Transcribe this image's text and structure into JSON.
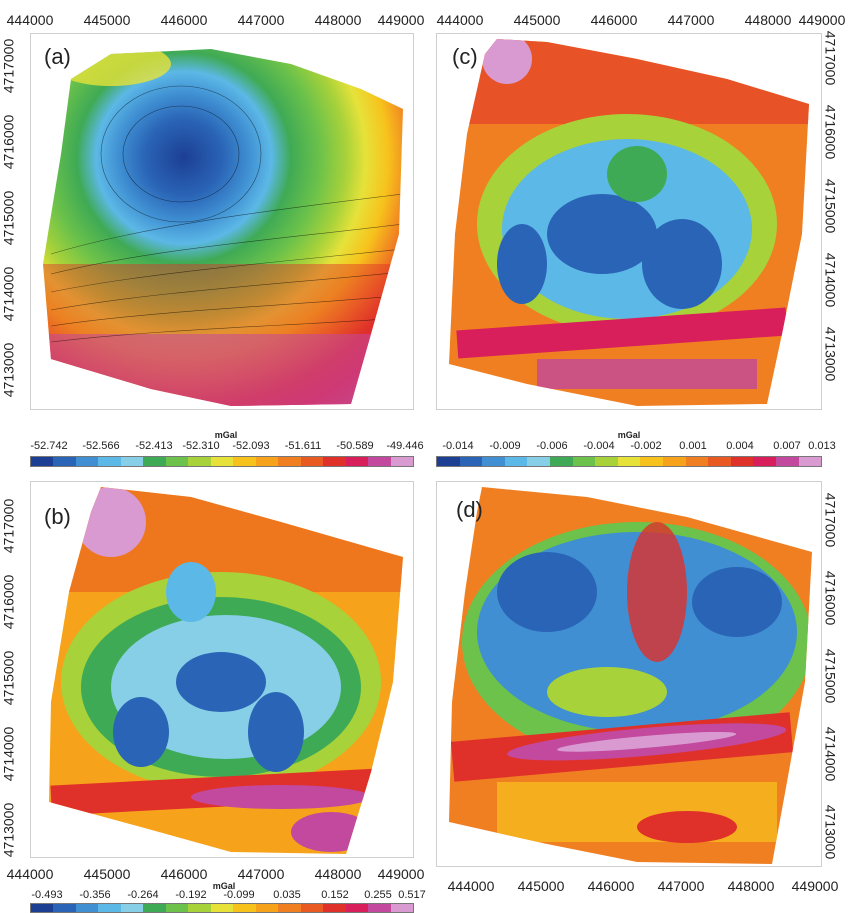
{
  "panels": {
    "a": {
      "label": "(a)",
      "x_ticks": [
        "444000",
        "445000",
        "446000",
        "447000",
        "448000",
        "449000"
      ],
      "y_ticks": [
        "4717000",
        "4716000",
        "4715000",
        "4714000",
        "4713000"
      ]
    },
    "b": {
      "label": "(b)",
      "x_ticks": [
        "444000",
        "445000",
        "446000",
        "447000",
        "448000",
        "449000"
      ],
      "y_ticks": [
        "4717000",
        "4716000",
        "4715000",
        "4714000",
        "4713000"
      ]
    },
    "c": {
      "label": "(c)",
      "x_ticks": [
        "444000",
        "445000",
        "446000",
        "447000",
        "448000",
        "449000"
      ],
      "y_ticks": [
        "4717000",
        "4716000",
        "4715000",
        "4714000",
        "4713000"
      ]
    },
    "d": {
      "label": "(d)",
      "x_ticks": [
        "444000",
        "445000",
        "446000",
        "447000",
        "448000",
        "449000"
      ],
      "y_ticks": [
        "4717000",
        "4716000",
        "4715000",
        "4714000",
        "4713000"
      ]
    }
  },
  "colorbars": {
    "a": {
      "unit": "mGal",
      "labels": [
        "-52.742",
        "-52.566",
        "-52.413",
        "-52.310",
        "-52.093",
        "-51.611",
        "-50.589",
        "-49.446"
      ]
    },
    "c": {
      "unit": "mGal",
      "labels": [
        "-0.014",
        "-0.009",
        "-0.006",
        "-0.004",
        "-0.002",
        "0.001",
        "0.004",
        "0.007",
        "0.013"
      ]
    },
    "b": {
      "unit": "mGal",
      "labels": [
        "-0.493",
        "-0.356",
        "-0.264",
        "-0.192",
        "-0.099",
        "0.035",
        "0.152",
        "0.255",
        "0.517"
      ]
    }
  },
  "palette": [
    "#1c3f94",
    "#2a64b6",
    "#3f8fd2",
    "#5cb8e6",
    "#86cfe6",
    "#3faa55",
    "#6cc24a",
    "#a8d23a",
    "#e6e23a",
    "#f7c21c",
    "#f6a21a",
    "#f07f22",
    "#e95a22",
    "#e0302a",
    "#d81e5b",
    "#c2499e",
    "#d89ad0"
  ]
}
